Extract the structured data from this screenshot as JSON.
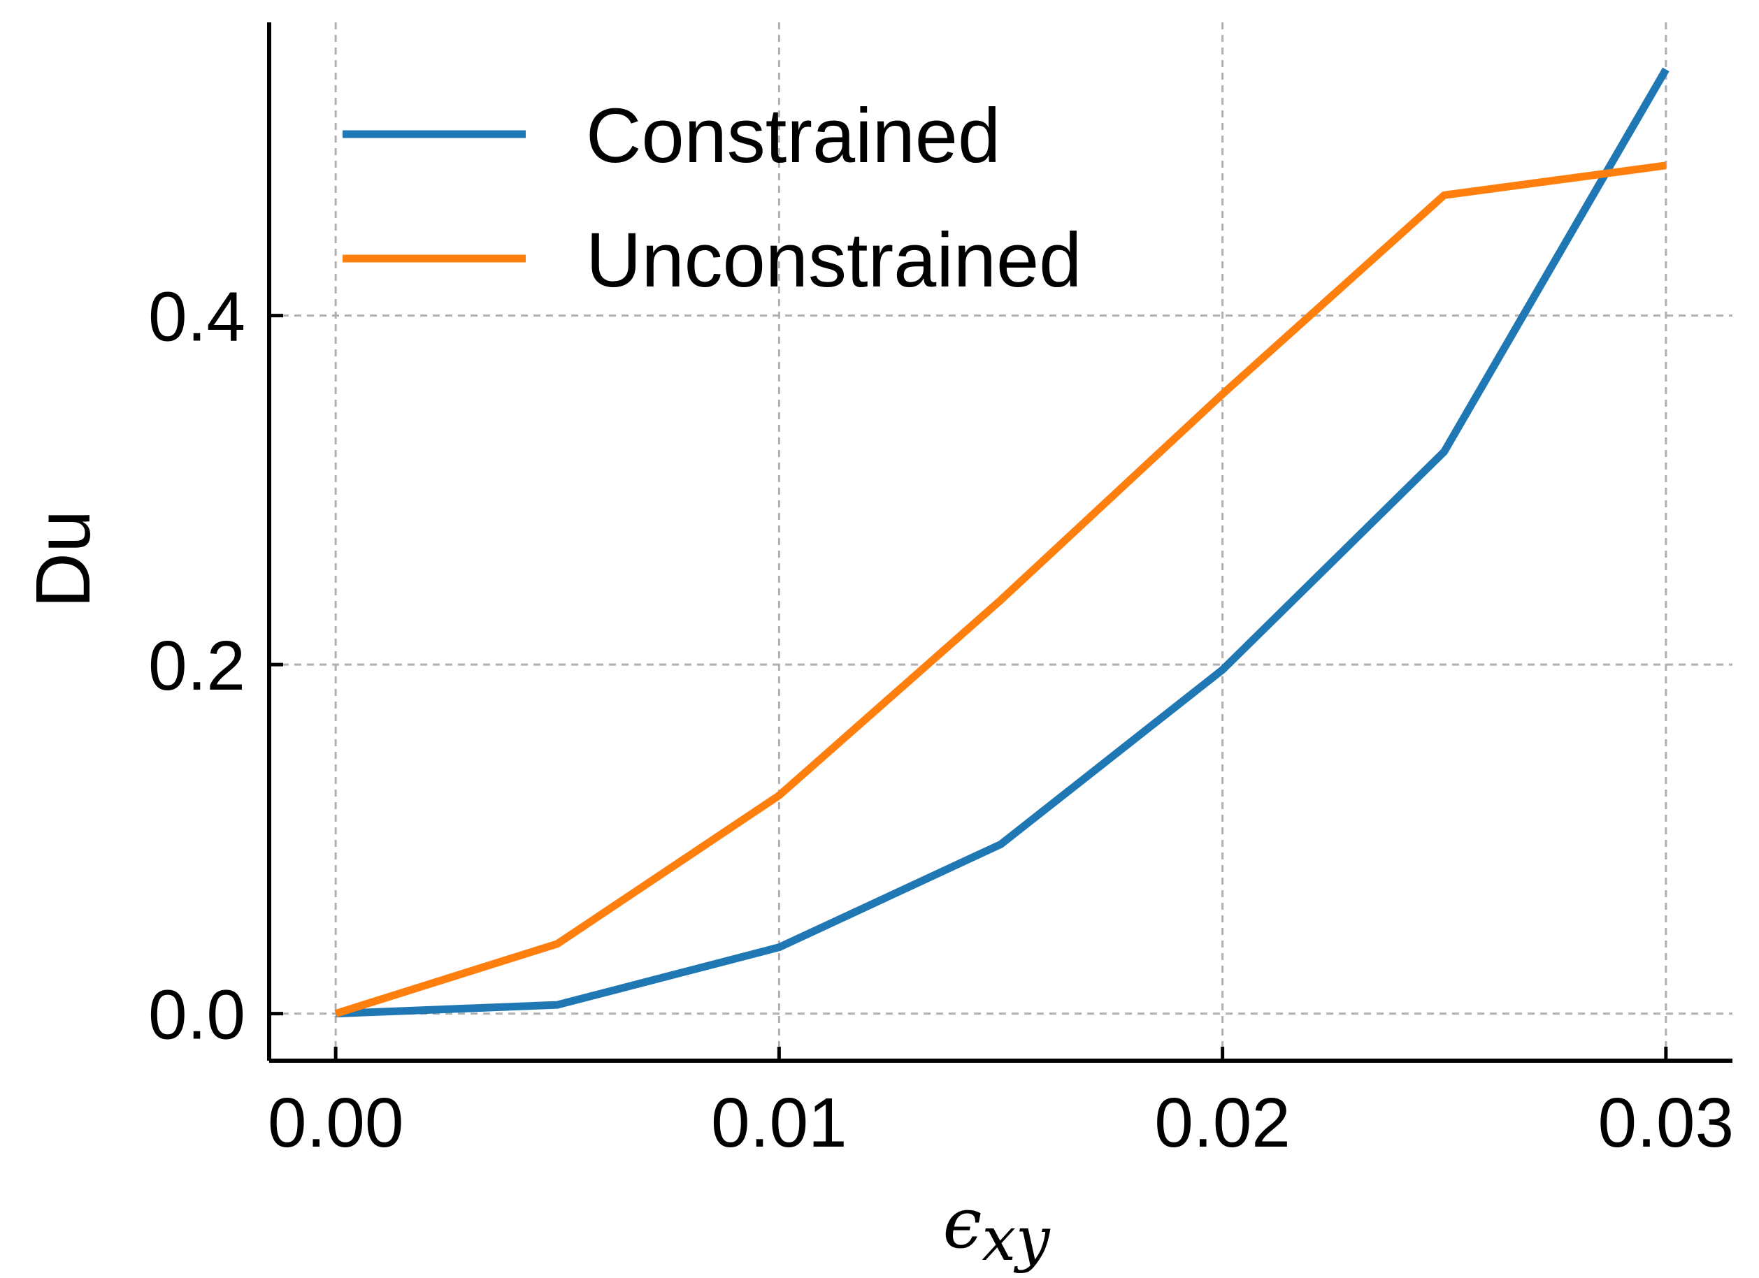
{
  "chart_data": {
    "type": "line",
    "xlabel": "ϵ",
    "xlabel_sub": "xy",
    "ylabel": "Du",
    "xlim": [
      -0.0015,
      0.0315
    ],
    "ylim": [
      -0.027,
      0.568
    ],
    "grid": true,
    "legend_position": "top-left",
    "x_ticks": [
      {
        "value": 0.0,
        "label": "0.00"
      },
      {
        "value": 0.01,
        "label": "0.01"
      },
      {
        "value": 0.02,
        "label": "0.02"
      },
      {
        "value": 0.03,
        "label": "0.03"
      }
    ],
    "y_ticks": [
      {
        "value": 0.0,
        "label": "0.0"
      },
      {
        "value": 0.2,
        "label": "0.2"
      },
      {
        "value": 0.4,
        "label": "0.4"
      }
    ],
    "series": [
      {
        "name": "Constrained",
        "color": "#1f77b4",
        "x": [
          0.0,
          0.005,
          0.01,
          0.015,
          0.02,
          0.025,
          0.03
        ],
        "y": [
          0.0,
          0.005,
          0.038,
          0.097,
          0.197,
          0.322,
          0.541
        ]
      },
      {
        "name": "Unconstrained",
        "color": "#ff7f0e",
        "x": [
          0.0,
          0.005,
          0.01,
          0.015,
          0.02,
          0.025,
          0.03
        ],
        "y": [
          0.0,
          0.04,
          0.125,
          0.237,
          0.355,
          0.469,
          0.486
        ]
      }
    ]
  }
}
